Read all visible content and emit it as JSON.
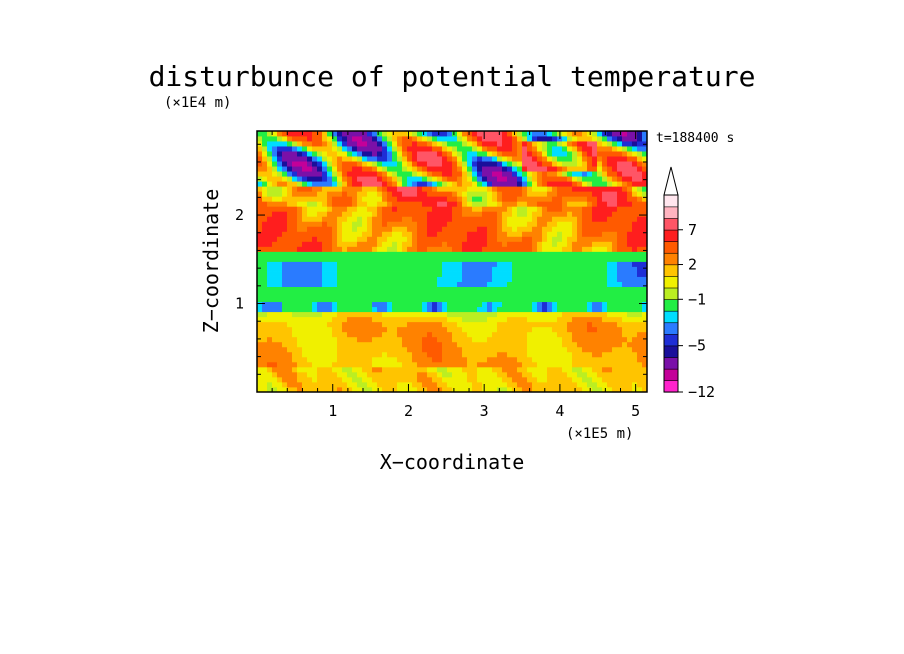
{
  "chart_data": {
    "type": "heatmap",
    "title": "disturbunce of potential temperature",
    "xlabel": "X−coordinate",
    "ylabel": "Z−coordinate",
    "x_unit": "(×1E5 m)",
    "y_unit": "(×1E4 m)",
    "annotation": "t=188400 s",
    "xlim": [
      0,
      5.15
    ],
    "ylim": [
      0,
      2.95
    ],
    "x_ticks": [
      1,
      2,
      3,
      4,
      5
    ],
    "x_tick_labels": [
      "1",
      "2",
      "3",
      "4",
      "5"
    ],
    "y_ticks": [
      1,
      2
    ],
    "y_tick_labels": [
      "1",
      "2"
    ],
    "grid": false,
    "colorbar": {
      "extend": "max",
      "levels": [
        -12,
        -10,
        -8,
        -6,
        -5,
        -4,
        -3,
        -2,
        -1,
        0,
        1,
        2,
        3,
        5,
        7,
        9,
        11
      ],
      "colors": [
        "#ff22cc",
        "#c40099",
        "#7a10a8",
        "#1a0f9b",
        "#1e2ed6",
        "#2a7bff",
        "#00ddff",
        "#22ee44",
        "#bbee22",
        "#f0f000",
        "#ffc400",
        "#ff8200",
        "#ff5a00",
        "#ff1e1e",
        "#ff5566",
        "#ffb4c0",
        "#ffe6ee"
      ],
      "tick_values": [
        -12,
        -5,
        -1,
        2,
        7
      ],
      "tick_labels": [
        "−12",
        "−5",
        "−1",
        "2",
        "7"
      ]
    },
    "field_description": [
      {
        "z_range": [
          0,
          0.3
        ],
        "value_range": [
          0,
          3
        ]
      },
      {
        "z_range": [
          0.3,
          0.9
        ],
        "value_range": [
          1,
          2
        ]
      },
      {
        "z_range": [
          0.9,
          1.6
        ],
        "value_range": [
          -3,
          -1
        ]
      },
      {
        "z_range": [
          1.6,
          2.3
        ],
        "value_range": [
          2,
          5
        ]
      },
      {
        "z_range": [
          2.3,
          2.95
        ],
        "value_range": [
          -8,
          9
        ]
      }
    ]
  }
}
